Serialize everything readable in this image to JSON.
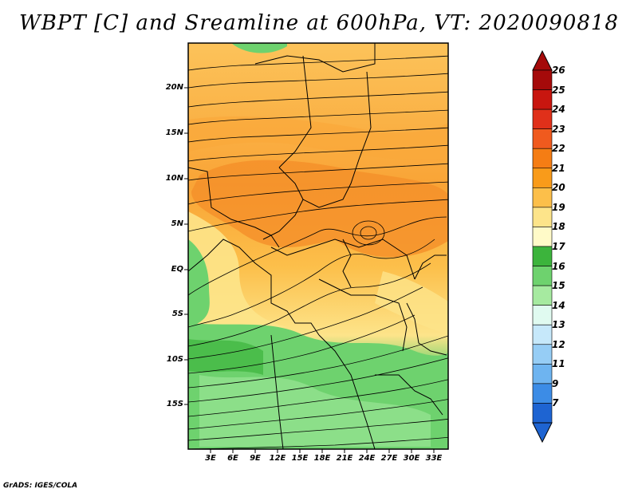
{
  "title": "WBPT [C] and Sreamline at 600hPa, VT: 2020090818",
  "credit": "GrADS: IGES/COLA",
  "lat_labels": [
    "20N",
    "15N",
    "10N",
    "5N",
    "EQ",
    "5S",
    "10S",
    "15S"
  ],
  "lon_labels": [
    "3E",
    "6E",
    "9E",
    "12E",
    "15E",
    "18E",
    "21E",
    "24E",
    "27E",
    "30E",
    "33E"
  ],
  "colorbar": {
    "labels": [
      "26",
      "25",
      "24",
      "23",
      "22",
      "21",
      "20",
      "19",
      "18",
      "17",
      "16",
      "15",
      "14",
      "13",
      "12",
      "11",
      "9",
      "7"
    ],
    "colors": [
      "#a50a0a",
      "#c8160f",
      "#e0301a",
      "#f05a1e",
      "#f57d14",
      "#f99b1a",
      "#fcbf4a",
      "#fde48a",
      "#fffac8",
      "#3cb43c",
      "#6ed26e",
      "#a6eaa0",
      "#e0faf0",
      "#c6e8fa",
      "#96cdf5",
      "#6eb4f0",
      "#3c8ce6",
      "#1e64d2"
    ]
  }
}
